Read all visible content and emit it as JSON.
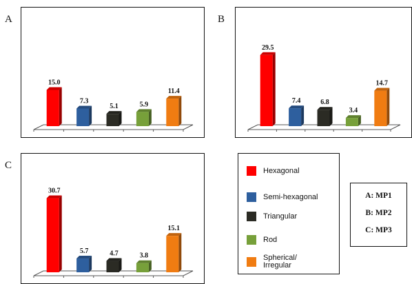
{
  "chart_data": [
    {
      "panel": "A",
      "type": "bar",
      "categories": [
        "Hexagonal",
        "Semi-hexagonal",
        "Triangular",
        "Rod",
        "Spherical/ Irregular"
      ],
      "values": [
        15.0,
        7.3,
        5.1,
        5.9,
        11.4
      ],
      "value_labels": [
        "15.0",
        "7.3",
        "5.1",
        "5.9",
        "11.4"
      ],
      "ylim": [
        0,
        32
      ]
    },
    {
      "panel": "B",
      "type": "bar",
      "categories": [
        "Hexagonal",
        "Semi-hexagonal",
        "Triangular",
        "Rod",
        "Spherical/ Irregular"
      ],
      "values": [
        29.5,
        7.4,
        6.8,
        3.4,
        14.7
      ],
      "value_labels": [
        "29.5",
        "7.4",
        "6.8",
        "3.4",
        "14.7"
      ],
      "ylim": [
        0,
        32
      ]
    },
    {
      "panel": "C",
      "type": "bar",
      "categories": [
        "Hexagonal",
        "Semi-hexagonal",
        "Triangular",
        "Rod",
        "Spherical/ Irregular"
      ],
      "values": [
        30.7,
        5.7,
        4.7,
        3.8,
        15.1
      ],
      "value_labels": [
        "30.7",
        "5.7",
        "4.7",
        "3.8",
        "15.1"
      ],
      "ylim": [
        0,
        32
      ]
    }
  ],
  "legend": {
    "items": [
      {
        "label": "Hexagonal",
        "color": "#ff0000"
      },
      {
        "label": "Semi-hexagonal",
        "color": "#2e5f9e"
      },
      {
        "label": "Triangular",
        "color": "#2b2b24"
      },
      {
        "label": "Rod",
        "color": "#77a03a"
      },
      {
        "label": "Spherical/\nIrregular",
        "color": "#f07c12"
      }
    ]
  },
  "key": {
    "lines": [
      "A: MP1",
      "B: MP2",
      "C: MP3"
    ]
  }
}
